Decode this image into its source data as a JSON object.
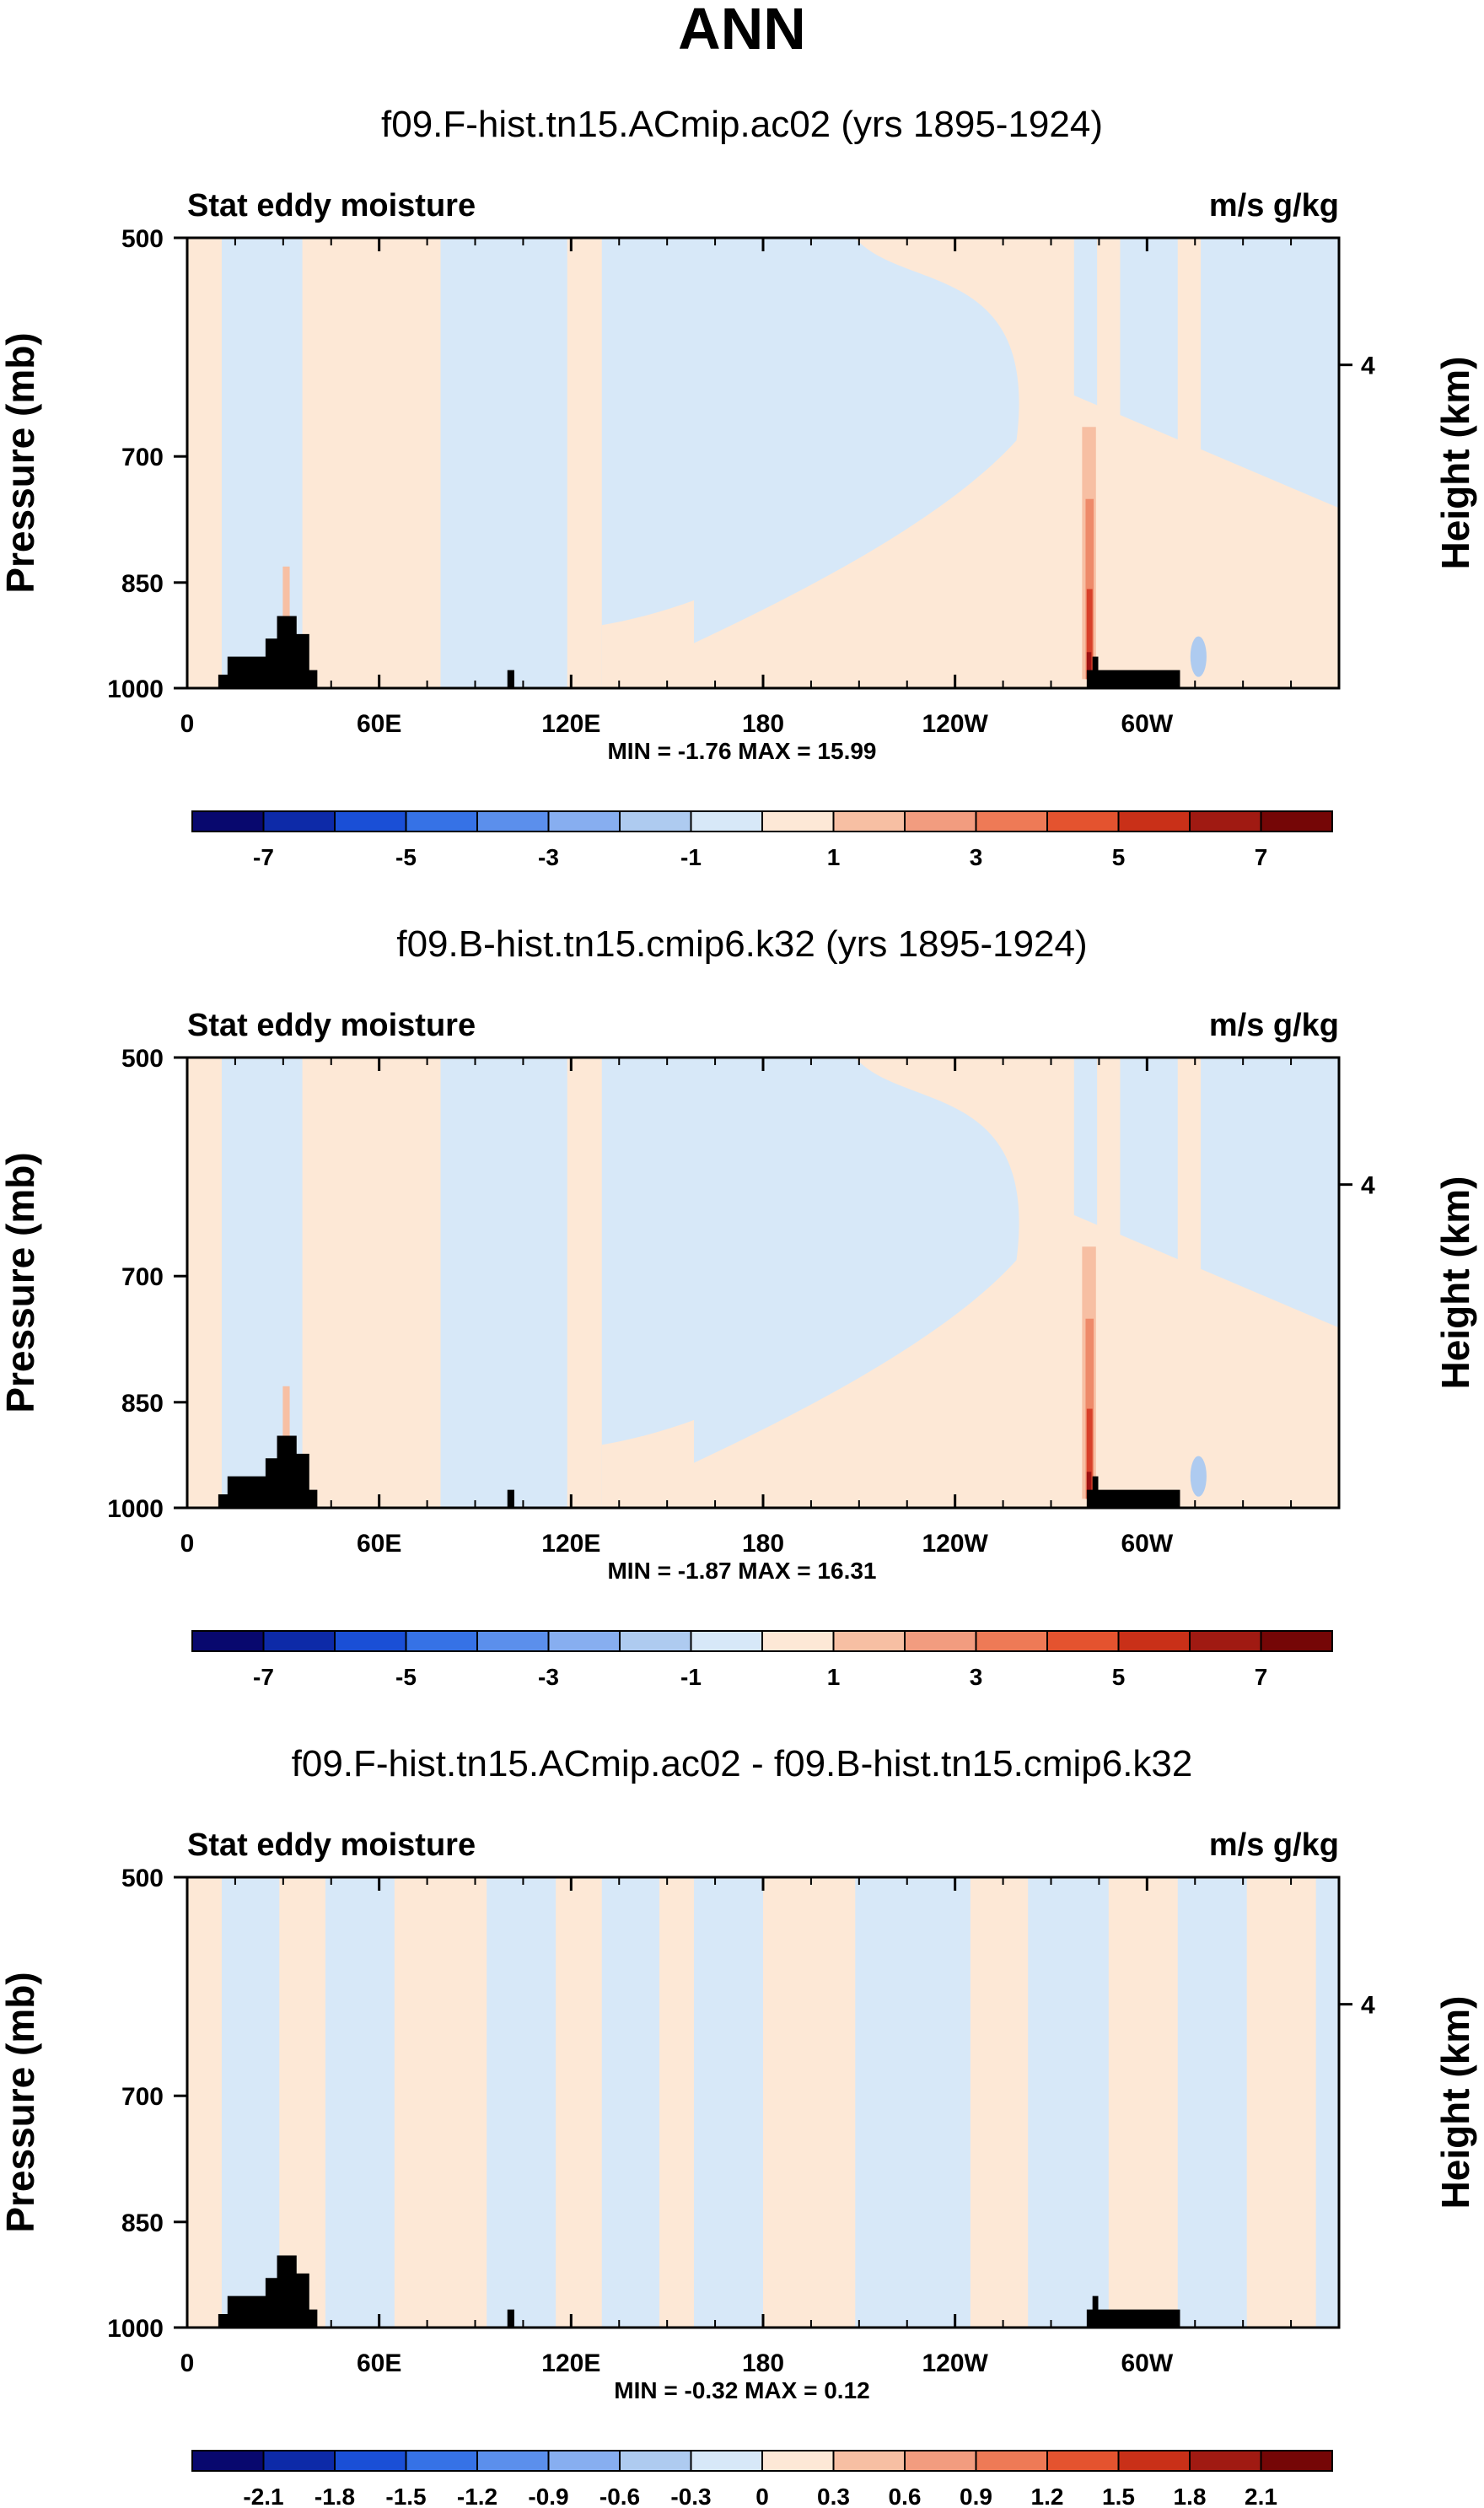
{
  "figure": {
    "title": "ANN",
    "colors": {
      "warm_1": "#fde8d6",
      "warm_2": "#f7bfa3",
      "warm_3": "#ee8a6a",
      "warm_4": "#d8402a",
      "warm_5": "#9e1313",
      "cool_1": "#d7e8f8",
      "cool_2": "#aecbf0",
      "land": "#000000"
    }
  },
  "chart_data": [
    {
      "type": "contour",
      "title": "f09.F-hist.tn15.ACmip.ac02 (yrs 1895-1924)",
      "left_label": "Stat eddy moisture",
      "right_label": "m/s g/kg",
      "ylabel": "Pressure (mb)",
      "ylabel_right": "Height (km)",
      "x_ticks": [
        "0",
        "60E",
        "120E",
        "180",
        "120W",
        "60W"
      ],
      "y_ticks": [
        "500",
        "700",
        "850",
        "1000"
      ],
      "y_right_ticks": [
        "4"
      ],
      "stats": "MIN = -1.76  MAX = 15.99",
      "colorbar": {
        "labels": [
          "-7",
          "-5",
          "-3",
          "-1",
          "1",
          "3",
          "5",
          "7"
        ],
        "colors": [
          "#08086e",
          "#0d2aa8",
          "#1a4fd6",
          "#3672e6",
          "#5b8fec",
          "#87aef0",
          "#aecbf0",
          "#d7e8f8",
          "#fde8d6",
          "#f7bfa3",
          "#f29c7f",
          "#ee7a56",
          "#e4532f",
          "#c93018",
          "#a01a12",
          "#750606"
        ]
      }
    },
    {
      "type": "contour",
      "title": "f09.B-hist.tn15.cmip6.k32 (yrs 1895-1924)",
      "left_label": "Stat eddy moisture",
      "right_label": "m/s g/kg",
      "ylabel": "Pressure (mb)",
      "ylabel_right": "Height (km)",
      "x_ticks": [
        "0",
        "60E",
        "120E",
        "180",
        "120W",
        "60W"
      ],
      "y_ticks": [
        "500",
        "700",
        "850",
        "1000"
      ],
      "y_right_ticks": [
        "4"
      ],
      "stats": "MIN = -1.87  MAX = 16.31",
      "colorbar": {
        "labels": [
          "-7",
          "-5",
          "-3",
          "-1",
          "1",
          "3",
          "5",
          "7"
        ],
        "colors": [
          "#08086e",
          "#0d2aa8",
          "#1a4fd6",
          "#3672e6",
          "#5b8fec",
          "#87aef0",
          "#aecbf0",
          "#d7e8f8",
          "#fde8d6",
          "#f7bfa3",
          "#f29c7f",
          "#ee7a56",
          "#e4532f",
          "#c93018",
          "#a01a12",
          "#750606"
        ]
      }
    },
    {
      "type": "contour",
      "title": "f09.F-hist.tn15.ACmip.ac02 - f09.B-hist.tn15.cmip6.k32",
      "left_label": "Stat eddy moisture",
      "right_label": "m/s g/kg",
      "ylabel": "Pressure (mb)",
      "ylabel_right": "Height (km)",
      "x_ticks": [
        "0",
        "60E",
        "120E",
        "180",
        "120W",
        "60W"
      ],
      "y_ticks": [
        "500",
        "700",
        "850",
        "1000"
      ],
      "y_right_ticks": [
        "4"
      ],
      "stats": "MIN = -0.32  MAX =  0.12",
      "colorbar": {
        "labels": [
          "-2.1",
          "-1.8",
          "-1.5",
          "-1.2",
          "-0.9",
          "-0.6",
          "-0.3",
          "0",
          "0.3",
          "0.6",
          "0.9",
          "1.2",
          "1.5",
          "1.8",
          "2.1"
        ],
        "colors": [
          "#08086e",
          "#0d2aa8",
          "#1a4fd6",
          "#3672e6",
          "#5b8fec",
          "#87aef0",
          "#aecbf0",
          "#d7e8f8",
          "#fde8d6",
          "#f7bfa3",
          "#f29c7f",
          "#ee7a56",
          "#e4532f",
          "#c93018",
          "#a01a12",
          "#750606"
        ]
      }
    }
  ]
}
